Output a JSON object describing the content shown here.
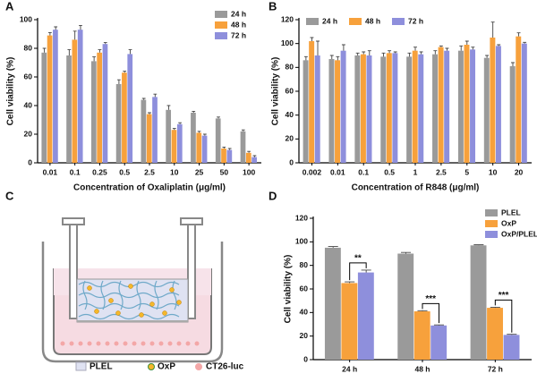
{
  "chart_data": [
    {
      "type": "bar",
      "panel": "A",
      "y_label": "Cell viability (%)",
      "x_label": "Concentration of Oxaliplatin (μg/ml)",
      "categories": [
        "0.01",
        "0.1",
        "0.25",
        "0.5",
        "2.5",
        "10",
        "25",
        "50",
        "100"
      ],
      "series": [
        {
          "name": "24 h",
          "color": "#9a9a9a",
          "values": [
            77,
            75,
            71,
            55,
            44,
            37,
            35,
            31,
            22
          ],
          "errors": [
            3,
            4,
            3,
            3,
            1,
            3,
            1,
            1,
            1
          ]
        },
        {
          "name": "48 h",
          "color": "#f7a13c",
          "values": [
            89,
            86,
            77,
            63,
            34,
            23,
            21,
            10,
            7
          ],
          "errors": [
            2,
            6,
            2,
            1,
            1,
            1,
            1,
            1,
            1
          ]
        },
        {
          "name": "72 h",
          "color": "#8e8fdc",
          "values": [
            93,
            93,
            83,
            76,
            46,
            27,
            19,
            9,
            4
          ],
          "errors": [
            2,
            3,
            1,
            3,
            2,
            1,
            1,
            1,
            1
          ]
        }
      ],
      "ylim": [
        0,
        100
      ],
      "yticks": [
        0,
        20,
        40,
        60,
        80,
        100
      ],
      "legend": "upper right"
    },
    {
      "type": "bar",
      "panel": "B",
      "y_label": "Cell viability (%)",
      "x_label": "Concentration of R848 (μg/ml)",
      "categories": [
        "0.002",
        "0.01",
        "0.1",
        "0.5",
        "1",
        "2.5",
        "5",
        "10",
        "20"
      ],
      "series": [
        {
          "name": "24 h",
          "color": "#9a9a9a",
          "values": [
            86,
            87,
            90,
            89,
            89,
            91,
            94,
            88,
            81
          ],
          "errors": [
            3,
            3,
            2,
            3,
            3,
            3,
            4,
            2,
            3
          ]
        },
        {
          "name": "48 h",
          "color": "#f7a13c",
          "values": [
            102,
            86,
            91,
            92,
            94,
            97,
            99,
            105,
            106
          ],
          "errors": [
            3,
            3,
            2,
            2,
            3,
            1,
            3,
            13,
            3
          ]
        },
        {
          "name": "72 h",
          "color": "#8e8fdc",
          "values": [
            90,
            94,
            90,
            92,
            91,
            94,
            95,
            98,
            100
          ],
          "errors": [
            12,
            5,
            4,
            1,
            2,
            2,
            2,
            1,
            1
          ]
        }
      ],
      "ylim": [
        0,
        120
      ],
      "yticks": [
        0,
        20,
        40,
        60,
        80,
        100,
        120
      ],
      "legend": "upper left",
      "legend_ncol": 3
    },
    {
      "type": "bar",
      "panel": "D",
      "y_label": "Cell viability (%)",
      "categories": [
        "24 h",
        "48 h",
        "72 h"
      ],
      "series": [
        {
          "name": "PLEL",
          "color": "#9a9a9a",
          "values": [
            95,
            90,
            97
          ],
          "errors": [
            1,
            1,
            0.5
          ]
        },
        {
          "name": "OxP",
          "color": "#f7a13c",
          "values": [
            65,
            41,
            44
          ],
          "errors": [
            1,
            0.5,
            0.5
          ]
        },
        {
          "name": "OxP/PLEL",
          "color": "#8e8fdc",
          "values": [
            74,
            29,
            21
          ],
          "errors": [
            2,
            0.5,
            0.5
          ]
        }
      ],
      "significance": [
        "**",
        "***",
        "***"
      ],
      "ylim": [
        0,
        120
      ],
      "yticks": [
        0,
        20,
        40,
        60,
        80,
        100,
        120
      ],
      "legend": "upper right"
    }
  ],
  "diagram": {
    "panel": "C",
    "legend": [
      "PLEL",
      "OxP",
      "CT26-luc"
    ]
  }
}
